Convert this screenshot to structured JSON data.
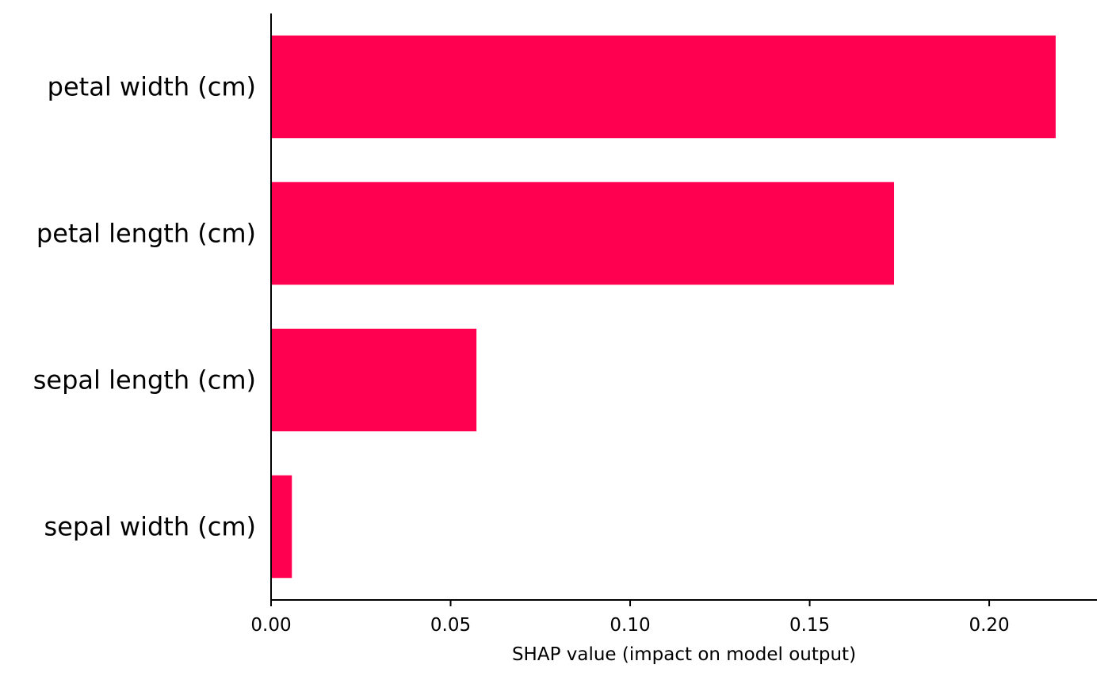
{
  "chart_data": {
    "type": "bar",
    "orientation": "horizontal",
    "categories": [
      "petal width (cm)",
      "petal length (cm)",
      "sepal length (cm)",
      "sepal width (cm)"
    ],
    "values": [
      0.2185,
      0.1735,
      0.0572,
      0.0058
    ],
    "xlabel": "SHAP value (impact on model output)",
    "ylabel": "",
    "title": "",
    "xlim": [
      0.0,
      0.23
    ],
    "xticks": [
      0.0,
      0.05,
      0.1,
      0.15,
      0.2
    ],
    "xtick_labels": [
      "0.00",
      "0.05",
      "0.10",
      "0.15",
      "0.20"
    ],
    "grid": false,
    "bar_color": "#ff0051"
  }
}
